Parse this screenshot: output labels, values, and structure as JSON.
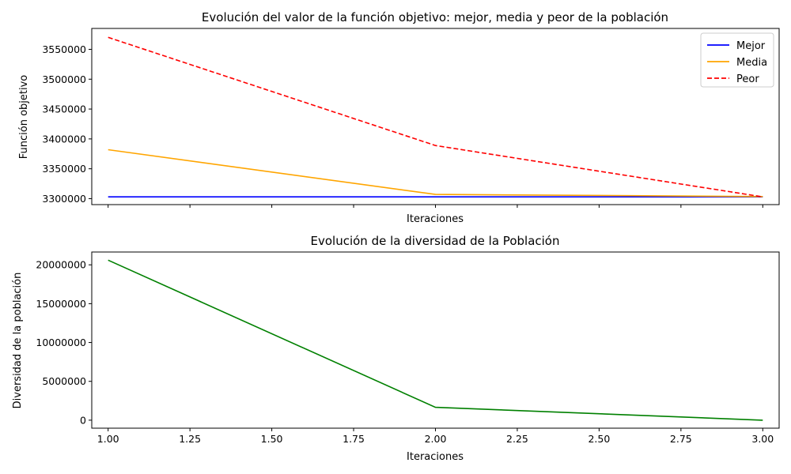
{
  "chart_data": [
    {
      "type": "line",
      "title": "Evolución del valor de la función objetivo: mejor, media y peor de la población",
      "xlabel": "Iteraciones",
      "ylabel": "Función objetivo",
      "x": [
        1,
        2,
        3
      ],
      "xlim": [
        0.95,
        3.05
      ],
      "ylim": [
        3290000,
        3585000
      ],
      "yticks": [
        3300000,
        3350000,
        3400000,
        3450000,
        3500000,
        3550000
      ],
      "xticks": [
        1.0,
        1.25,
        1.5,
        1.75,
        2.0,
        2.25,
        2.5,
        2.75,
        3.0
      ],
      "x_tick_labels_shown": false,
      "grid": false,
      "legend": "top-right",
      "series": [
        {
          "name": "Mejor",
          "values": [
            3303000,
            3303000,
            3303000
          ],
          "color": "#0000ff",
          "style": "solid"
        },
        {
          "name": "Media",
          "values": [
            3382000,
            3307000,
            3303500
          ],
          "color": "#ffa500",
          "style": "solid"
        },
        {
          "name": "Peor",
          "values": [
            3570000,
            3389000,
            3303000
          ],
          "color": "#ff0000",
          "style": "dashed"
        }
      ]
    },
    {
      "type": "line",
      "title": "Evolución de la diversidad de la Población",
      "xlabel": "Iteraciones",
      "ylabel": "Diversidad de la población",
      "x": [
        1,
        2,
        3
      ],
      "xlim": [
        0.95,
        3.05
      ],
      "ylim": [
        -1030000,
        21650000
      ],
      "yticks": [
        0,
        5000000,
        10000000,
        15000000,
        20000000
      ],
      "xticks": [
        1.0,
        1.25,
        1.5,
        1.75,
        2.0,
        2.25,
        2.5,
        2.75,
        3.0
      ],
      "x_tick_labels": [
        "1.00",
        "1.25",
        "1.50",
        "1.75",
        "2.00",
        "2.25",
        "2.50",
        "2.75",
        "3.00"
      ],
      "grid": false,
      "series": [
        {
          "values": [
            20600000,
            1650000,
            0
          ],
          "color": "#008000",
          "style": "solid"
        }
      ]
    }
  ]
}
